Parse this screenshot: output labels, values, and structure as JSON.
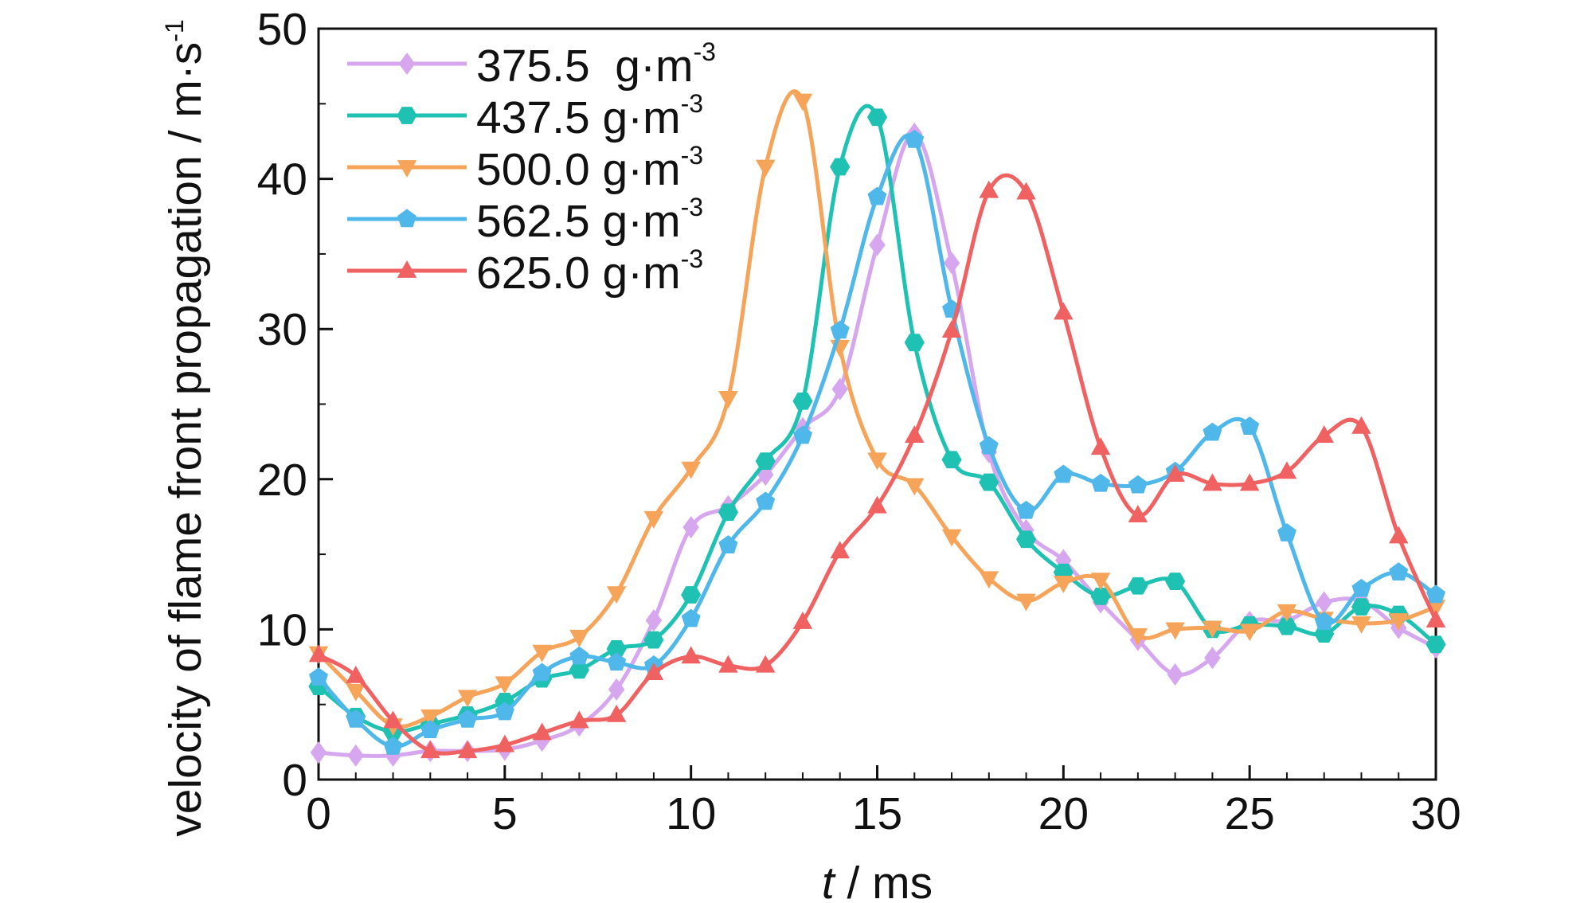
{
  "chart_data": {
    "type": "line",
    "title": "",
    "xlabel": {
      "italic": "t",
      "rest": " / ms"
    },
    "ylabel": {
      "main": "velocity of flame front propagation / m·s",
      "sup": "-1"
    },
    "xlim": [
      0,
      30
    ],
    "ylim": [
      0,
      50
    ],
    "xticks": [
      0,
      5,
      10,
      15,
      20,
      25,
      30
    ],
    "yticks": [
      0,
      10,
      20,
      30,
      40,
      50
    ],
    "legend": {
      "position": "top-left",
      "unit": "g·m",
      "unit_sup": "-3"
    },
    "series": [
      {
        "name": "375.5  g·m-3",
        "legend_value": "375.5",
        "color": "#d6a6ef",
        "marker": "diamond",
        "x": [
          0,
          1,
          2,
          3,
          4,
          5,
          6,
          7,
          8,
          9,
          10,
          11,
          12,
          13,
          14,
          15,
          16,
          17,
          18,
          19,
          20,
          21,
          22,
          23,
          24,
          25,
          26,
          27,
          28,
          29,
          30
        ],
        "y": [
          1.8,
          1.6,
          1.6,
          1.9,
          1.9,
          2.0,
          2.6,
          3.6,
          6.0,
          10.6,
          16.8,
          18.2,
          20.3,
          23.4,
          26.0,
          35.6,
          43.0,
          34.4,
          21.8,
          16.6,
          14.6,
          11.8,
          9.3,
          7.0,
          8.1,
          10.5,
          10.6,
          11.8,
          11.9,
          10.1,
          8.8
        ]
      },
      {
        "name": "437.5 g·m-3",
        "legend_value": "437.5",
        "color": "#1fc2b2",
        "marker": "hexagon",
        "x": [
          0,
          1,
          2,
          3,
          4,
          5,
          6,
          7,
          8,
          9,
          10,
          11,
          12,
          13,
          14,
          15,
          16,
          17,
          18,
          19,
          20,
          21,
          22,
          23,
          24,
          25,
          26,
          27,
          28,
          29,
          30
        ],
        "y": [
          6.2,
          4.2,
          3.2,
          3.7,
          4.3,
          5.2,
          6.7,
          7.3,
          8.7,
          9.3,
          12.3,
          17.8,
          21.2,
          25.2,
          40.8,
          44.1,
          29.1,
          21.3,
          19.8,
          16.0,
          13.8,
          12.2,
          12.9,
          13.2,
          10.0,
          10.3,
          10.2,
          9.7,
          11.5,
          11.0,
          9.0
        ]
      },
      {
        "name": "500.0 g·m-3",
        "legend_value": "500.0",
        "color": "#f6a45a",
        "marker": "triangle-down",
        "x": [
          0,
          1,
          2,
          3,
          4,
          5,
          6,
          7,
          8,
          9,
          10,
          11,
          12,
          13,
          14,
          15,
          16,
          17,
          18,
          19,
          20,
          21,
          22,
          23,
          24,
          25,
          26,
          27,
          28,
          29,
          30
        ],
        "y": [
          8.4,
          5.9,
          3.6,
          4.2,
          5.5,
          6.4,
          8.5,
          9.5,
          12.4,
          17.4,
          20.7,
          25.4,
          40.8,
          45.2,
          28.8,
          21.3,
          19.6,
          16.2,
          13.4,
          11.9,
          13.1,
          13.3,
          9.6,
          10.0,
          10.1,
          9.9,
          11.2,
          10.7,
          10.4,
          10.6,
          11.5
        ]
      },
      {
        "name": "562.5 g·m-3",
        "legend_value": "562.5",
        "color": "#4fb7ea",
        "marker": "pentagon",
        "x": [
          0,
          1,
          2,
          3,
          4,
          5,
          6,
          7,
          8,
          9,
          10,
          11,
          12,
          13,
          14,
          15,
          16,
          17,
          18,
          19,
          20,
          21,
          22,
          23,
          24,
          25,
          26,
          27,
          28,
          29,
          30
        ],
        "y": [
          6.8,
          4.0,
          2.2,
          3.3,
          4.0,
          4.5,
          7.1,
          8.2,
          7.8,
          7.6,
          10.7,
          15.6,
          18.5,
          22.9,
          29.9,
          38.8,
          42.6,
          31.3,
          22.2,
          17.9,
          20.3,
          19.7,
          19.6,
          20.5,
          23.1,
          23.5,
          16.4,
          10.5,
          12.7,
          13.8,
          12.3
        ]
      },
      {
        "name": "625.0 g·m-3",
        "legend_value": "625.0",
        "color": "#f06161",
        "marker": "triangle-up",
        "x": [
          0,
          1,
          2,
          3,
          4,
          5,
          6,
          7,
          8,
          9,
          10,
          11,
          12,
          13,
          14,
          15,
          16,
          17,
          18,
          19,
          20,
          21,
          22,
          23,
          24,
          25,
          26,
          27,
          28,
          29,
          30
        ],
        "y": [
          8.3,
          6.9,
          3.9,
          1.9,
          1.9,
          2.3,
          3.1,
          3.9,
          4.3,
          7.1,
          8.2,
          7.6,
          7.6,
          10.5,
          15.2,
          18.2,
          22.9,
          29.9,
          39.2,
          39.1,
          31.1,
          22.1,
          17.6,
          20.3,
          19.7,
          19.7,
          20.5,
          22.9,
          23.5,
          16.2,
          10.6
        ]
      }
    ]
  }
}
